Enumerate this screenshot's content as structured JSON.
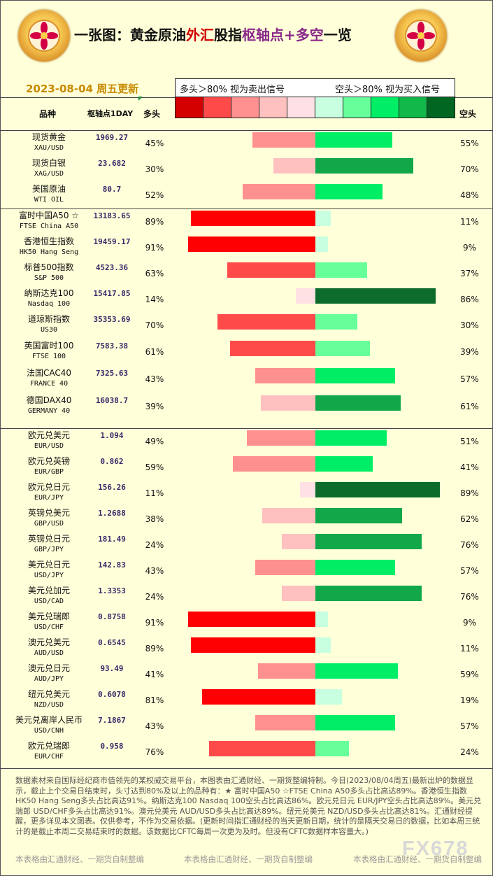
{
  "header": {
    "title_parts": [
      "一张图：黄金原油",
      "外汇",
      "股指",
      "枢轴点+多空",
      "一览"
    ],
    "date": "2023-08-04 周五更新",
    "sell_signal": "多头＞80% 视为卖出信号",
    "buy_signal": "空头＞80% 视为买入信号",
    "scale_colors": [
      "#d40000",
      "#ff4a4a",
      "#ff9090",
      "#ffc0c0",
      "#ffe0e4",
      "#c8ffe0",
      "#66ff99",
      "#00ee66",
      "#12b84a",
      "#006622"
    ]
  },
  "columns": {
    "name": "品种",
    "pivot": "枢轴点1DAY",
    "long": "多头",
    "short": "空头"
  },
  "colors": {
    "long_strong": "#ff0000",
    "long_mid": "#ff4a4a",
    "long_light": "#ff9090",
    "long_pale": "#ffc0c0",
    "long_faint": "#ffe0e4",
    "short_faint": "#c8ffe0",
    "short_pale": "#66ff99",
    "short_mid": "#00ee66",
    "short_strong": "#12a84a",
    "short_dark": "#0d6b2c"
  },
  "chart_data": {
    "type": "bar",
    "orientation": "diverging-horizontal",
    "series": [
      {
        "name": "多头",
        "unit": "%"
      },
      {
        "name": "空头",
        "unit": "%"
      }
    ],
    "rows": [
      {
        "name": "现货黄金",
        "code": "XAU/USD",
        "pivot": "1969.27",
        "long": 45,
        "short": 55
      },
      {
        "name": "现货白银",
        "code": "XAG/USD",
        "pivot": "23.682",
        "long": 30,
        "short": 70
      },
      {
        "name": "美国原油",
        "code": "WTI OIL",
        "pivot": "80.7",
        "long": 52,
        "short": 48
      },
      {
        "name": "富时中国A50 ☆",
        "code": "FTSE China A50",
        "pivot": "13183.65",
        "long": 89,
        "short": 11
      },
      {
        "name": "香港恒生指数",
        "code": "HK50 Hang Seng",
        "pivot": "19459.17",
        "long": 91,
        "short": 9
      },
      {
        "name": "标普500指数",
        "code": "S&P 500",
        "pivot": "4523.36",
        "long": 63,
        "short": 37
      },
      {
        "name": "纳斯达克100",
        "code": "Nasdaq 100",
        "pivot": "15417.85",
        "long": 14,
        "short": 86
      },
      {
        "name": "道琼斯指数",
        "code": "US30",
        "pivot": "35353.69",
        "long": 70,
        "short": 30
      },
      {
        "name": "英国富时100",
        "code": "FTSE 100",
        "pivot": "7583.38",
        "long": 61,
        "short": 39
      },
      {
        "name": "法国CAC40",
        "code": "FRANCE 40",
        "pivot": "7325.63",
        "long": 43,
        "short": 57
      },
      {
        "name": "德国DAX40",
        "code": "GERMANY 40",
        "pivot": "16038.7",
        "long": 39,
        "short": 61
      },
      {
        "name": "欧元兑美元",
        "code": "EUR/USD",
        "pivot": "1.094",
        "long": 49,
        "short": 51
      },
      {
        "name": "欧元兑英镑",
        "code": "EUR/GBP",
        "pivot": "0.862",
        "long": 59,
        "short": 41
      },
      {
        "name": "欧元兑日元",
        "code": "EUR/JPY",
        "pivot": "156.26",
        "long": 11,
        "short": 89
      },
      {
        "name": "英镑兑美元",
        "code": "GBP/USD",
        "pivot": "1.2688",
        "long": 38,
        "short": 62
      },
      {
        "name": "英镑兑日元",
        "code": "GBP/JPY",
        "pivot": "181.49",
        "long": 24,
        "short": 76
      },
      {
        "name": "美元兑日元",
        "code": "USD/JPY",
        "pivot": "142.83",
        "long": 43,
        "short": 57
      },
      {
        "name": "美元兑加元",
        "code": "USD/CAD",
        "pivot": "1.3353",
        "long": 24,
        "short": 76
      },
      {
        "name": "美元兑瑞郎",
        "code": "USD/CHF",
        "pivot": "0.8758",
        "long": 91,
        "short": 9
      },
      {
        "name": "澳元兑美元",
        "code": "AUD/USD",
        "pivot": "0.6545",
        "long": 89,
        "short": 11
      },
      {
        "name": "澳元兑日元",
        "code": "AUD/JPY",
        "pivot": "93.49",
        "long": 41,
        "short": 59
      },
      {
        "name": "纽元兑美元",
        "code": "NZD/USD",
        "pivot": "0.6078",
        "long": 81,
        "short": 19
      },
      {
        "name": "美元兑离岸人民币",
        "code": "USD/CNH",
        "pivot": "7.1867",
        "long": 43,
        "short": 57
      },
      {
        "name": "欧元兑瑞郎",
        "code": "EUR/CHF",
        "pivot": "0.958",
        "long": 76,
        "short": 24
      }
    ]
  },
  "notes": {
    "text": "数据素材来自国际经纪商市值领先的某权威交易平台，本图表由汇通财经、一期货整编特制。今日(2023/08/04周五)最新出炉的数据显示，截止上个交易日结束时，头寸达到80%及以上的品种有：★ 富时中国A50 ☆FTSE China A50多头占比高达89%。香港恒生指数 HK50 Hang Seng多头占比高达91%。纳斯达克100 Nasdaq 100空头占比高达86%。欧元兑日元 EUR/JPY空头占比高达89%。美元兑瑞郎 USD/CHF多头占比高达91%。澳元兑美元 AUD/USD多头占比高达89%。纽元兑美元 NZD/USD多头占比高达81%。汇通财经提醒，更多详见本文图表。仅供参考，不作为交易依据。(更新时间指汇通财经的当天更新日期，统计的是隔天交易日的数据，比如本周三统计的是截止本周二交易结束时的数据。该数据比CFTC每周一次更为及时。但没有CFTC数据样本容量大。)",
    "credits": [
      "本表格由汇通财经、一期货自制整编",
      "本表格由汇通财经、一期货自制整编",
      "本表格由汇通财经、一期货自制整编"
    ],
    "logo": "FX678"
  }
}
